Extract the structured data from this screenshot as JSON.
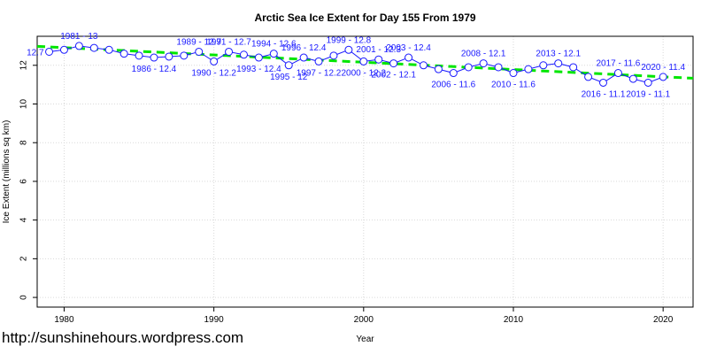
{
  "chart_data": {
    "type": "line",
    "title": "Arctic Sea Ice Extent for Day 155 From 1979",
    "xlabel": "Year",
    "ylabel": "Ice Extent (millions sq km)",
    "xlim": [
      1978.2,
      2022
    ],
    "ylim": [
      -0.5,
      13.5
    ],
    "x_ticks": [
      1980,
      1990,
      2000,
      2010,
      2020
    ],
    "y_ticks": [
      0,
      2,
      4,
      6,
      8,
      10,
      12
    ],
    "grid": true,
    "series": [
      {
        "x": [
          1979,
          1980,
          1981,
          1982,
          1983,
          1984,
          1985,
          1986,
          1987,
          1988,
          1989,
          1990,
          1991,
          1992,
          1993,
          1994,
          1995,
          1996,
          1997,
          1998,
          1999,
          2000,
          2001,
          2002,
          2003,
          2004,
          2005,
          2006,
          2007,
          2008,
          2009,
          2010,
          2011,
          2012,
          2013,
          2014,
          2015,
          2016,
          2017,
          2018,
          2019,
          2020
        ],
        "y": [
          12.7,
          12.8,
          13.0,
          12.9,
          12.8,
          12.6,
          12.5,
          12.4,
          12.45,
          12.5,
          12.7,
          12.2,
          12.7,
          12.55,
          12.4,
          12.6,
          12.0,
          12.4,
          12.2,
          12.5,
          12.8,
          12.2,
          12.3,
          12.1,
          12.4,
          12.0,
          11.8,
          11.6,
          11.9,
          12.1,
          11.9,
          11.6,
          11.8,
          12.0,
          12.1,
          11.9,
          11.4,
          11.1,
          11.6,
          11.3,
          11.1,
          11.4
        ]
      }
    ],
    "point_labels": [
      {
        "x": 1979,
        "y": 12.7,
        "text": "12.7"
      },
      {
        "x": 1981,
        "y": 13.0,
        "text": "1981 - 13"
      },
      {
        "x": 1986,
        "y": 12.4,
        "text": "1986 - 12.4"
      },
      {
        "x": 1989,
        "y": 12.7,
        "text": "1989 - 12.7"
      },
      {
        "x": 1990,
        "y": 12.2,
        "text": "1990 - 12.2"
      },
      {
        "x": 1991,
        "y": 12.7,
        "text": "1991 - 12.7"
      },
      {
        "x": 1993,
        "y": 12.4,
        "text": "1993 - 12.4"
      },
      {
        "x": 1994,
        "y": 12.6,
        "text": "1994 - 12.6"
      },
      {
        "x": 1995,
        "y": 12.0,
        "text": "1995 - 12"
      },
      {
        "x": 1996,
        "y": 12.4,
        "text": "1996 - 12.4"
      },
      {
        "x": 1997,
        "y": 12.2,
        "text": "1997 - 12.2"
      },
      {
        "x": 1999,
        "y": 12.8,
        "text": "1999 - 12.8"
      },
      {
        "x": 2000,
        "y": 12.2,
        "text": "2000 - 12.2"
      },
      {
        "x": 2001,
        "y": 12.3,
        "text": "2001 - 12.3"
      },
      {
        "x": 2002,
        "y": 12.1,
        "text": "2002 - 12.1"
      },
      {
        "x": 2003,
        "y": 12.4,
        "text": "2003 - 12.4"
      },
      {
        "x": 2006,
        "y": 11.6,
        "text": "2006 - 11.6"
      },
      {
        "x": 2008,
        "y": 12.1,
        "text": "2008 - 12.1"
      },
      {
        "x": 2010,
        "y": 11.6,
        "text": "2010 - 11.6"
      },
      {
        "x": 2013,
        "y": 12.1,
        "text": "2013 - 12.1"
      },
      {
        "x": 2016,
        "y": 11.1,
        "text": "2016 - 11.1"
      },
      {
        "x": 2017,
        "y": 11.6,
        "text": "2017 - 11.6"
      },
      {
        "x": 2019,
        "y": 11.1,
        "text": "2019 - 11.1"
      },
      {
        "x": 2020,
        "y": 11.4,
        "text": "2020 - 11.4"
      }
    ],
    "trendline": {
      "x": [
        1978.2,
        2022
      ],
      "y": [
        12.98,
        11.33
      ]
    },
    "colors": {
      "series": "#1a1aff",
      "trend": "#00e600",
      "grid": "#d9d9d9"
    }
  },
  "watermark": "http://sunshinehours.wordpress.com"
}
